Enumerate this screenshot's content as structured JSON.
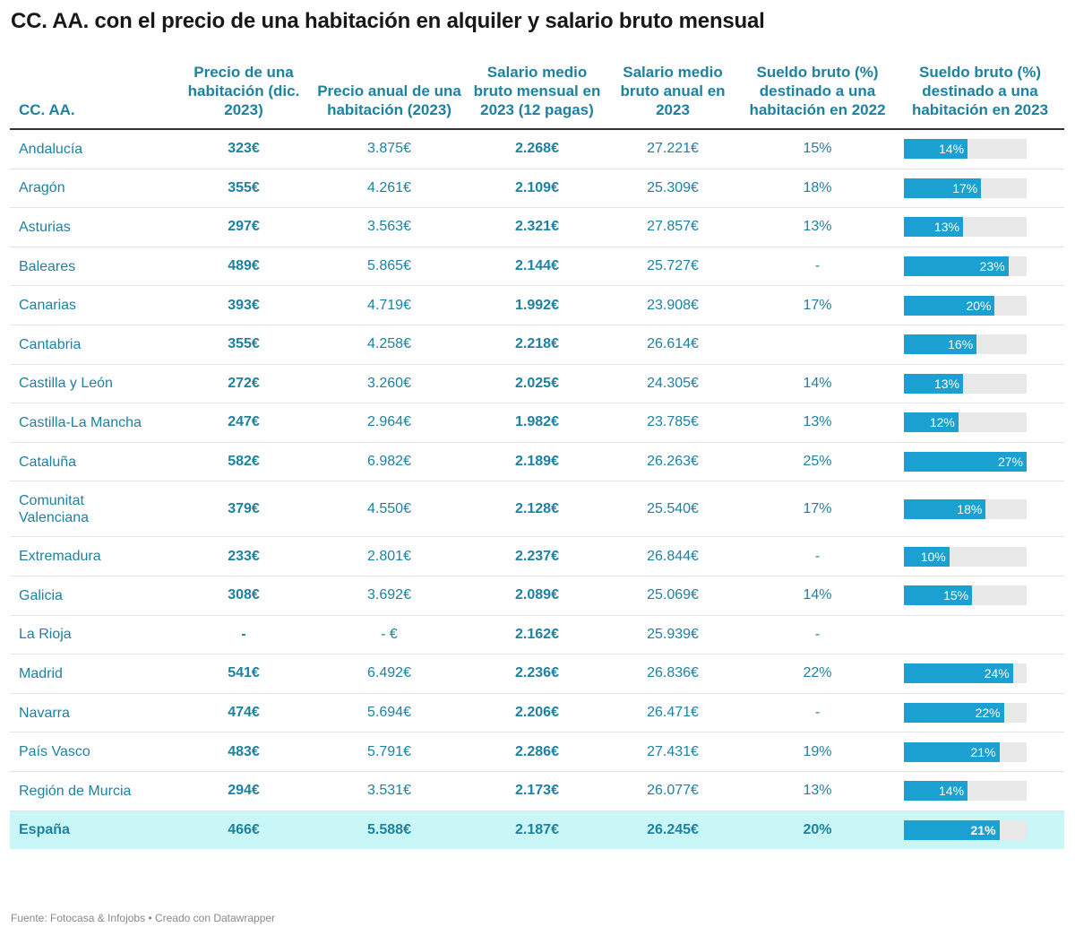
{
  "title": "CC. AA. con el precio de una habitación en alquiler y salario bruto mensual",
  "footer": "Fuente: Fotocasa & Infojobs • Creado con Datawrapper",
  "colors": {
    "bar": "#1aa0d1",
    "bar_track": "#e8e8e8",
    "text": "#1d81a2",
    "total_row_bg": "#c9f7f8"
  },
  "chart_data": {
    "type": "table",
    "columns": [
      "CC. AA.",
      "Precio de una habitación (dic. 2023)",
      "Precio anual de una habitación (2023)",
      "Salario medio bruto mensual en 2023 (12 pagas)",
      "Salario medio bruto anual en 2023",
      "Sueldo bruto (%) destinado a una habitación en 2022",
      "Sueldo bruto (%) destinado a una habitación en 2023"
    ],
    "bar_max": 27,
    "rows": [
      {
        "region": "Andalucía",
        "precio": "323€",
        "anual": "3.875€",
        "salario_mensual": "2.268€",
        "salario_anual": "27.221€",
        "pct_2022": "15%",
        "pct_2023_label": "14%",
        "pct_2023": 14
      },
      {
        "region": "Aragón",
        "precio": "355€",
        "anual": "4.261€",
        "salario_mensual": "2.109€",
        "salario_anual": "25.309€",
        "pct_2022": "18%",
        "pct_2023_label": "17%",
        "pct_2023": 17
      },
      {
        "region": "Asturias",
        "precio": "297€",
        "anual": "3.563€",
        "salario_mensual": "2.321€",
        "salario_anual": "27.857€",
        "pct_2022": "13%",
        "pct_2023_label": "13%",
        "pct_2023": 13
      },
      {
        "region": "Baleares",
        "precio": "489€",
        "anual": "5.865€",
        "salario_mensual": "2.144€",
        "salario_anual": "25.727€",
        "pct_2022": "-",
        "pct_2023_label": "23%",
        "pct_2023": 23
      },
      {
        "region": "Canarias",
        "precio": "393€",
        "anual": "4.719€",
        "salario_mensual": "1.992€",
        "salario_anual": "23.908€",
        "pct_2022": "17%",
        "pct_2023_label": "20%",
        "pct_2023": 20
      },
      {
        "region": "Cantabria",
        "precio": "355€",
        "anual": "4.258€",
        "salario_mensual": "2.218€",
        "salario_anual": "26.614€",
        "pct_2022": "",
        "pct_2023_label": "16%",
        "pct_2023": 16
      },
      {
        "region": "Castilla y León",
        "precio": "272€",
        "anual": "3.260€",
        "salario_mensual": "2.025€",
        "salario_anual": "24.305€",
        "pct_2022": "14%",
        "pct_2023_label": "13%",
        "pct_2023": 13
      },
      {
        "region": "Castilla-La Mancha",
        "precio": "247€",
        "anual": "2.964€",
        "salario_mensual": "1.982€",
        "salario_anual": "23.785€",
        "pct_2022": "13%",
        "pct_2023_label": "12%",
        "pct_2023": 12
      },
      {
        "region": "Cataluña",
        "precio": "582€",
        "anual": "6.982€",
        "salario_mensual": "2.189€",
        "salario_anual": "26.263€",
        "pct_2022": "25%",
        "pct_2023_label": "27%",
        "pct_2023": 27
      },
      {
        "region": "Comunitat Valenciana",
        "precio": "379€",
        "anual": "4.550€",
        "salario_mensual": "2.128€",
        "salario_anual": "25.540€",
        "pct_2022": "17%",
        "pct_2023_label": "18%",
        "pct_2023": 18
      },
      {
        "region": "Extremadura",
        "precio": "233€",
        "anual": "2.801€",
        "salario_mensual": "2.237€",
        "salario_anual": "26.844€",
        "pct_2022": "-",
        "pct_2023_label": "10%",
        "pct_2023": 10
      },
      {
        "region": "Galicia",
        "precio": "308€",
        "anual": "3.692€",
        "salario_mensual": "2.089€",
        "salario_anual": "25.069€",
        "pct_2022": "14%",
        "pct_2023_label": "15%",
        "pct_2023": 15
      },
      {
        "region": "La Rioja",
        "precio": "-",
        "anual": "- €",
        "salario_mensual": "2.162€",
        "salario_anual": "25.939€",
        "pct_2022": "-",
        "pct_2023_label": "",
        "pct_2023": null
      },
      {
        "region": "Madrid",
        "precio": "541€",
        "anual": "6.492€",
        "salario_mensual": "2.236€",
        "salario_anual": "26.836€",
        "pct_2022": "22%",
        "pct_2023_label": "24%",
        "pct_2023": 24
      },
      {
        "region": "Navarra",
        "precio": "474€",
        "anual": "5.694€",
        "salario_mensual": "2.206€",
        "salario_anual": "26.471€",
        "pct_2022": "-",
        "pct_2023_label": "22%",
        "pct_2023": 22
      },
      {
        "region": "País Vasco",
        "precio": "483€",
        "anual": "5.791€",
        "salario_mensual": "2.286€",
        "salario_anual": "27.431€",
        "pct_2022": "19%",
        "pct_2023_label": "21%",
        "pct_2023": 21
      },
      {
        "region": "Región de Murcia",
        "precio": "294€",
        "anual": "3.531€",
        "salario_mensual": "2.173€",
        "salario_anual": "26.077€",
        "pct_2022": "13%",
        "pct_2023_label": "14%",
        "pct_2023": 14
      },
      {
        "region": "España",
        "precio": "466€",
        "anual": "5.588€",
        "salario_mensual": "2.187€",
        "salario_anual": "26.245€",
        "pct_2022": "20%",
        "pct_2023_label": "21%",
        "pct_2023": 21,
        "total": true
      }
    ]
  }
}
